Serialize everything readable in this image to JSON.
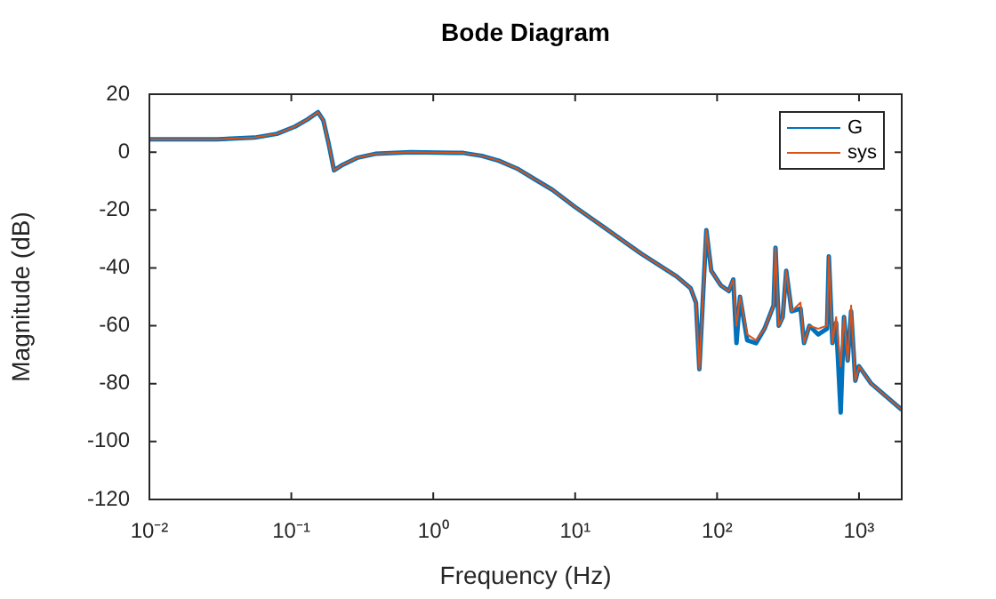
{
  "chart_data": {
    "type": "line",
    "title": "Bode Diagram",
    "xlabel": "Frequency (Hz)",
    "ylabel": "Magnitude (dB)",
    "x": [
      0.01,
      0.03,
      0.055,
      0.079,
      0.106,
      0.13,
      0.154,
      0.168,
      0.183,
      0.2,
      0.23,
      0.29,
      0.39,
      0.69,
      1.63,
      2.2,
      2.9,
      3.9,
      5.2,
      6.9,
      10,
      16,
      29,
      52,
      65,
      71,
      75,
      79,
      84,
      91,
      106,
      121,
      130,
      137,
      145,
      163,
      188,
      216,
      250,
      258,
      272,
      290,
      307,
      335,
      387,
      410,
      447,
      515,
      595,
      613,
      650,
      690,
      743,
      784,
      832,
      880,
      942,
      1000,
      1220,
      2000
    ],
    "series": [
      {
        "name": "G",
        "color": "#0072bd",
        "values": [
          4.4,
          4.4,
          5,
          6.3,
          8.8,
          11.3,
          13.8,
          11,
          3,
          -6.3,
          -4.4,
          -2,
          -0.6,
          0,
          -0.3,
          -1.3,
          -3,
          -5.7,
          -9.4,
          -13,
          -19,
          -26,
          -35,
          -43,
          -47,
          -52,
          -75,
          -53,
          -27,
          -41,
          -46,
          -48,
          -44,
          -66,
          -50,
          -65,
          -66,
          -61,
          -53,
          -33,
          -60,
          -57,
          -41,
          -55,
          -54,
          -66,
          -60,
          -63,
          -61,
          -36,
          -66,
          -59,
          -90,
          -57,
          -72,
          -55,
          -79,
          -74,
          -80,
          -89
        ]
      },
      {
        "name": "sys",
        "color": "#d95319",
        "values": [
          4.4,
          4.4,
          5,
          6.3,
          8.8,
          11.3,
          13.8,
          11,
          3,
          -6.3,
          -4.4,
          -2,
          -0.6,
          0,
          -0.3,
          -1.3,
          -3,
          -5.7,
          -9.4,
          -13,
          -19,
          -26,
          -35,
          -43,
          -47,
          -52,
          -75,
          -53,
          -27,
          -41,
          -46,
          -48,
          -44,
          -60,
          -50,
          -63,
          -65,
          -61,
          -53,
          -33,
          -60,
          -57,
          -41,
          -55,
          -52,
          -66,
          -60,
          -61,
          -60,
          -36,
          -66,
          -57,
          -74,
          -57,
          -72,
          -53,
          -79,
          -74,
          -80,
          -89
        ]
      }
    ],
    "log": "x",
    "xlim": [
      0.01,
      2000
    ],
    "xticks": [
      {
        "value": 0.01,
        "label": "10⁻²"
      },
      {
        "value": 0.1,
        "label": "10⁻¹"
      },
      {
        "value": 1,
        "label": "10⁰"
      },
      {
        "value": 10,
        "label": "10¹"
      },
      {
        "value": 100,
        "label": "10²"
      },
      {
        "value": 1000,
        "label": "10³"
      }
    ],
    "ylim": [
      -120,
      20
    ],
    "yticks": [
      -120,
      -100,
      -80,
      -60,
      -40,
      -20,
      0,
      20
    ],
    "legend": "top right",
    "grid": false,
    "marker": "none",
    "line_style": "solid"
  }
}
